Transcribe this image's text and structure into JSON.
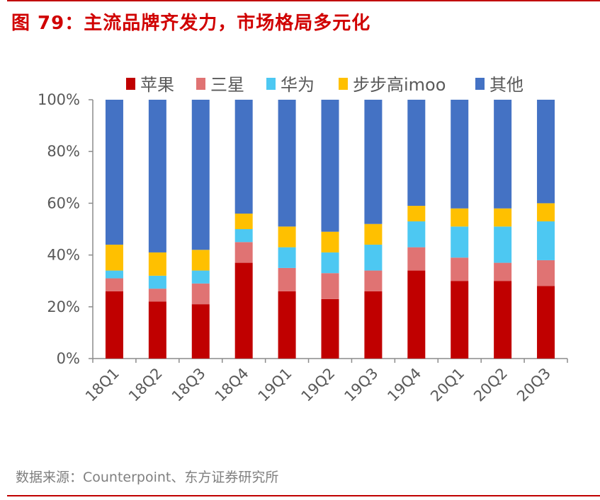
{
  "title": "图 79：主流品牌齐发力，市场格局多元化",
  "source": "数据来源：Counterpoint、东方证券研究所",
  "chart_data": {
    "type": "bar",
    "stacked": true,
    "categories": [
      "18Q1",
      "18Q2",
      "18Q3",
      "18Q4",
      "19Q1",
      "19Q2",
      "19Q3",
      "19Q4",
      "20Q1",
      "20Q2",
      "20Q3"
    ],
    "series": [
      {
        "name": "苹果",
        "color": "#c00000",
        "values": [
          26,
          22,
          21,
          37,
          26,
          23,
          26,
          34,
          30,
          30,
          28
        ]
      },
      {
        "name": "三星",
        "color": "#e07373",
        "values": [
          5,
          5,
          8,
          8,
          9,
          10,
          8,
          9,
          9,
          7,
          10
        ]
      },
      {
        "name": "华为",
        "color": "#4dc8f2",
        "values": [
          3,
          5,
          5,
          5,
          8,
          8,
          10,
          10,
          12,
          14,
          15
        ]
      },
      {
        "name": "步步高imoo",
        "color": "#ffc000",
        "values": [
          10,
          9,
          8,
          6,
          8,
          8,
          8,
          6,
          7,
          7,
          7
        ]
      },
      {
        "name": "其他",
        "color": "#4472c4",
        "values": [
          56,
          59,
          58,
          44,
          49,
          51,
          48,
          41,
          42,
          42,
          40
        ]
      }
    ],
    "yticks": [
      "0%",
      "20%",
      "40%",
      "60%",
      "80%",
      "100%"
    ],
    "ylim": [
      0,
      100
    ],
    "legend": "top",
    "grid": false
  }
}
